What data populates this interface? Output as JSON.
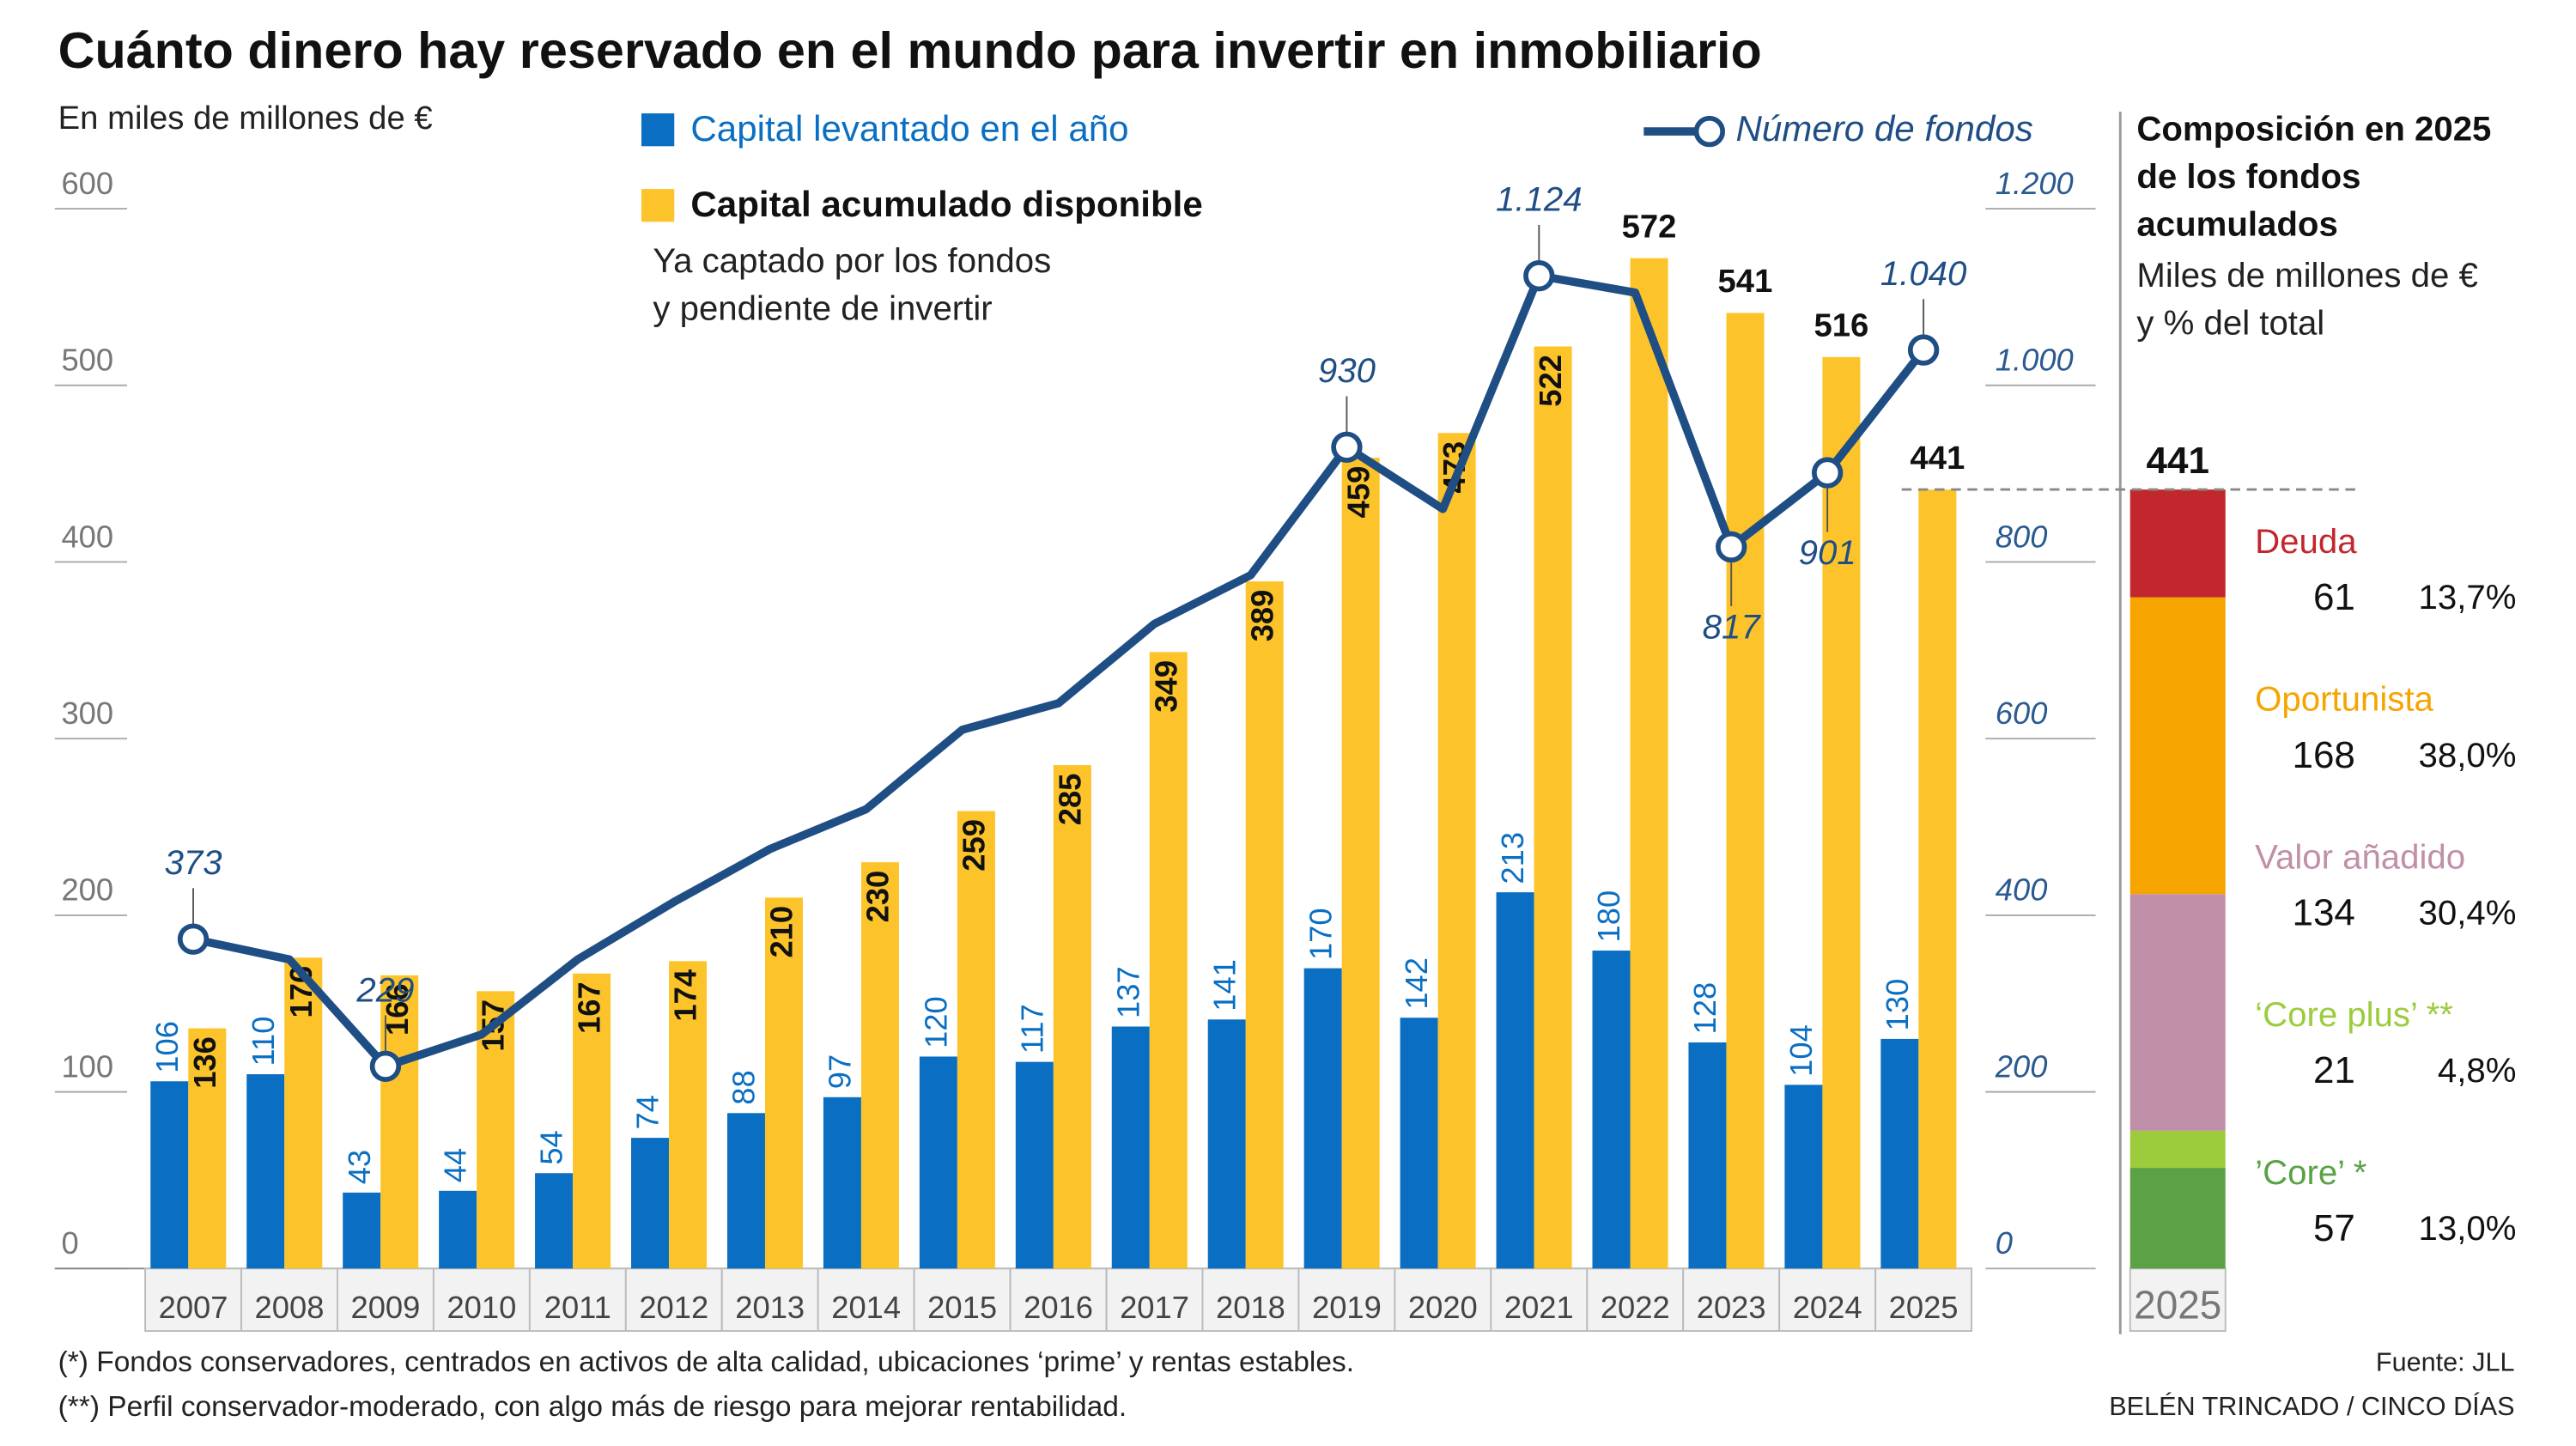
{
  "title": "Cuánto dinero hay reservado en el mundo para invertir en inmobiliario",
  "notes": [
    "(*) Fondos conservadores, centrados en activos de alta calidad, ubicaciones ‘prime’ y rentas estables.",
    "(**) Perfil conservador-moderado, con algo más de riesgo para mejorar rentabilidad."
  ],
  "source": "Fuente: JLL",
  "credit": "BELÉN TRINCADO / CINCO DÍAS",
  "chart_data": [
    {
      "type": "bar",
      "y_label": "En miles de millones de €",
      "categories": [
        "2007",
        "2008",
        "2009",
        "2010",
        "2011",
        "2012",
        "2013",
        "2014",
        "2015",
        "2016",
        "2017",
        "2018",
        "2019",
        "2020",
        "2021",
        "2022",
        "2023",
        "2024",
        "2025"
      ],
      "series": [
        {
          "name": "Capital levantado en el año",
          "color": "#0a6fc2",
          "values": [
            106,
            110,
            43,
            44,
            54,
            74,
            88,
            97,
            120,
            117,
            137,
            141,
            170,
            142,
            213,
            180,
            128,
            104,
            130
          ]
        },
        {
          "name": "Capital acumulado disponible",
          "description": [
            "Ya captado por los fondos",
            "y pendiente de invertir"
          ],
          "color": "#fcc42a",
          "values": [
            136,
            176,
            166,
            157,
            167,
            174,
            210,
            230,
            259,
            285,
            349,
            389,
            459,
            473,
            522,
            572,
            541,
            516,
            441
          ]
        },
        {
          "name": "Número de fondos",
          "type": "line",
          "axis": "y2",
          "color": "#1f4e85",
          "values": [
            373,
            350,
            229,
            265,
            350,
            415,
            475,
            520,
            610,
            640,
            730,
            785,
            930,
            860,
            1124,
            1105,
            817,
            901,
            1040
          ],
          "value_labels": [
            "373",
            null,
            "229",
            null,
            null,
            null,
            null,
            null,
            null,
            null,
            null,
            null,
            "930",
            null,
            "1.124",
            null,
            "817",
            "901",
            "1.040"
          ]
        }
      ],
      "ylim": [
        0,
        600
      ],
      "yticks": [
        0,
        100,
        200,
        300,
        400,
        500,
        600
      ],
      "y2lim": [
        0,
        1200
      ],
      "y2ticks": [
        0,
        200,
        400,
        600,
        800,
        {
          "value": 1000,
          "label": "1.000"
        },
        {
          "value": 1200,
          "label": "1.200"
        }
      ]
    },
    {
      "type": "stacked_bar",
      "title": [
        "Composición en 2025",
        "de los fondos",
        "acumulados"
      ],
      "subtitle": [
        "Miles de millones de €",
        "y % del total"
      ],
      "categories": [
        "2025"
      ],
      "total": 441,
      "ylim": [
        0,
        600
      ],
      "series": [
        {
          "name": "’Core’ *",
          "color": "#5aa245",
          "values": [
            57
          ],
          "share_label": "13,0%"
        },
        {
          "name": "‘Core plus’ **",
          "color": "#9ccc3c",
          "values": [
            21
          ],
          "share_label": "4,8%"
        },
        {
          "name": "Valor añadido",
          "color": "#c08fa8",
          "values": [
            134
          ],
          "share_label": "30,4%"
        },
        {
          "name": "Oportunista",
          "color": "#f5a400",
          "values": [
            168
          ],
          "share_label": "38,0%"
        },
        {
          "name": "Deuda",
          "color": "#c1272d",
          "values": [
            61
          ],
          "share_label": "13,7%"
        }
      ]
    }
  ]
}
